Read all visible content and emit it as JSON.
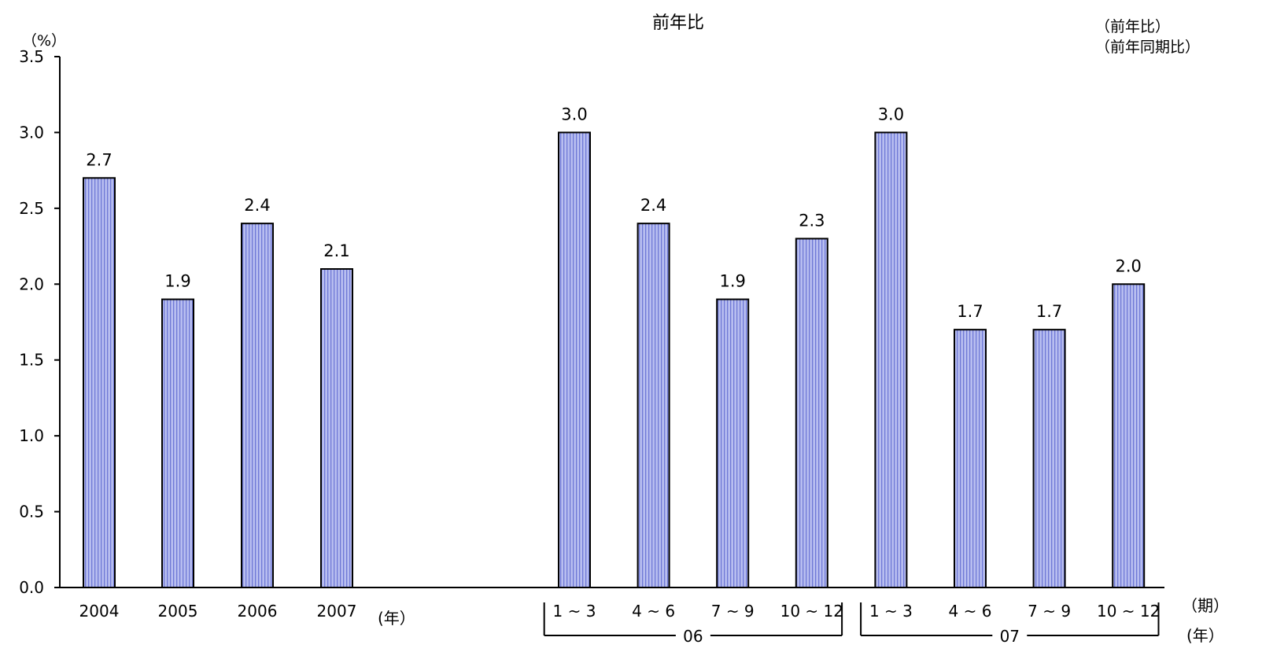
{
  "chart_data": {
    "type": "bar",
    "title": "前年比",
    "y_unit": "（%）",
    "ylim": [
      0,
      3.5
    ],
    "y_ticks": [
      "0.0",
      "0.5",
      "1.0",
      "1.5",
      "2.0",
      "2.5",
      "3.0",
      "3.5"
    ],
    "y_tick_values": [
      0,
      0.5,
      1.0,
      1.5,
      2.0,
      2.5,
      3.0,
      3.5
    ],
    "legend_notes": [
      "（前年比）",
      "（前年同期比）"
    ],
    "annual_unit_label": "(年）",
    "period_unit_label": "（期）",
    "year_unit_label": "(年）",
    "grid": false,
    "bar_fill": "#b8bef0",
    "bar_stripe": "#6e78d6",
    "annual": {
      "categories": [
        "2004",
        "2005",
        "2006",
        "2007"
      ],
      "values": [
        2.7,
        1.9,
        2.4,
        2.1
      ],
      "labels": [
        "2.7",
        "1.9",
        "2.4",
        "2.1"
      ]
    },
    "quarterly": {
      "categories": [
        "1 ~ 3",
        "4 ~ 6",
        "7 ~ 9",
        "10 ~ 12",
        "1 ~ 3",
        "4 ~ 6",
        "7 ~ 9",
        "10 ~ 12"
      ],
      "values": [
        3.0,
        2.4,
        1.9,
        2.3,
        3.0,
        1.7,
        1.7,
        2.0
      ],
      "labels": [
        "3.0",
        "2.4",
        "1.9",
        "2.3",
        "3.0",
        "1.7",
        "1.7",
        "2.0"
      ],
      "groups": [
        {
          "label": "06",
          "start": 0,
          "end": 3
        },
        {
          "label": "07",
          "start": 4,
          "end": 7
        }
      ]
    }
  }
}
